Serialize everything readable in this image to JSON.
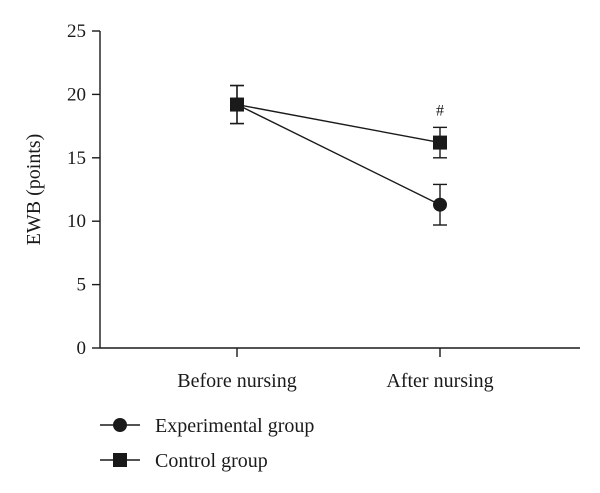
{
  "chart_data": {
    "type": "line",
    "title": "",
    "xlabel": "",
    "ylabel": "EWB (points)",
    "ylim": [
      0,
      25
    ],
    "yticks": [
      0,
      5,
      10,
      15,
      20,
      25
    ],
    "categories": [
      "Before nursing",
      "After nursing"
    ],
    "series": [
      {
        "name": "Experimental group",
        "marker": "circle",
        "values": [
          19.2,
          11.3
        ],
        "error": [
          1.5,
          1.6
        ]
      },
      {
        "name": "Control group",
        "marker": "square",
        "values": [
          19.2,
          16.2
        ],
        "error": [
          1.5,
          1.2
        ]
      }
    ],
    "annotations": [
      {
        "text": "#",
        "category": "After nursing",
        "series": "Control group"
      }
    ],
    "legend_position": "bottom-left",
    "grid": false,
    "colors": {
      "line": "#1a1a1a",
      "marker": "#1a1a1a"
    }
  }
}
